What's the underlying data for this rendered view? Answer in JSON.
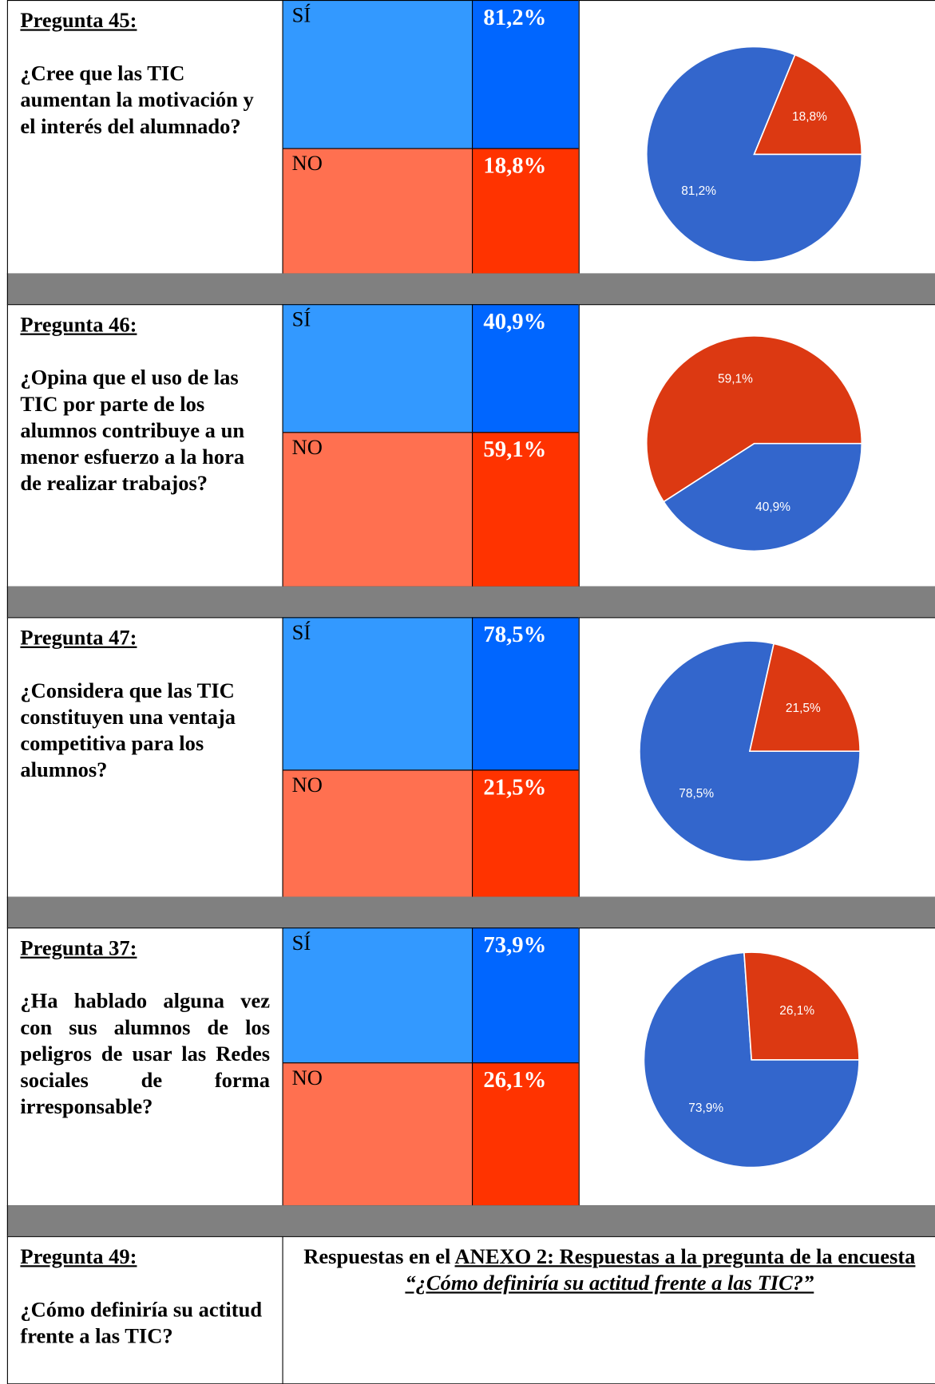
{
  "table": {
    "rows": [
      {
        "question": "Pregunta 45:",
        "text": "¿Cree que las TIC aumentan la motivación y el interés del alumnado?",
        "answers": [
          {
            "label": "SÍ",
            "value": "81,2%"
          },
          {
            "label": "NO",
            "value": "18,8%"
          }
        ]
      },
      {
        "question": "Pregunta 46:",
        "text": "¿Opina que el uso de las TIC por parte de los alumnos contribuye a un menor esfuerzo a la hora de realizar trabajos?",
        "answers": [
          {
            "label": "SÍ",
            "value": "40,9%"
          },
          {
            "label": "NO",
            "value": "59,1%"
          }
        ]
      },
      {
        "question": "Pregunta 47:",
        "text": "¿Considera que las TIC constituyen una ventaja competitiva para los alumnos?",
        "answers": [
          {
            "label": "SÍ",
            "value": "78,5%"
          },
          {
            "label": "NO",
            "value": "21,5%"
          }
        ]
      },
      {
        "question": "Pregunta 37:",
        "text": "¿Ha hablado alguna vez con sus alumnos de los peligros de usar las Redes sociales de forma irresponsable?",
        "answers": [
          {
            "label": "SÍ",
            "value": "73,9%"
          },
          {
            "label": "NO",
            "value": "26,1%"
          }
        ]
      }
    ],
    "last_row": {
      "question": "Pregunta 49:",
      "text": "¿Cómo definiría su actitud frente a las TIC?",
      "note": {
        "plain": "Respuestas en el ",
        "link": "ANEXO 2: Respuestas a la pregunta de la encuesta ",
        "quote": "“¿Cómo definiría su actitud frente a las TIC?”"
      }
    }
  },
  "chart_data": [
    {
      "type": "pie",
      "values": [
        81.2,
        18.8
      ],
      "value_labels": [
        "81,2%",
        "18,8%"
      ],
      "colors": [
        "#3366cc",
        "#dc3912"
      ]
    },
    {
      "type": "pie",
      "values": [
        40.9,
        59.1
      ],
      "value_labels": [
        "40,9%",
        "59,1%"
      ],
      "colors": [
        "#3366cc",
        "#dc3912"
      ]
    },
    {
      "type": "pie",
      "values": [
        78.5,
        21.5
      ],
      "value_labels": [
        "78,5%",
        "21,5%"
      ],
      "colors": [
        "#3366cc",
        "#dc3912"
      ]
    },
    {
      "type": "pie",
      "values": [
        73.9,
        26.1
      ],
      "value_labels": [
        "73,9%",
        "26,1%"
      ],
      "colors": [
        "#3366cc",
        "#dc3912"
      ]
    }
  ]
}
